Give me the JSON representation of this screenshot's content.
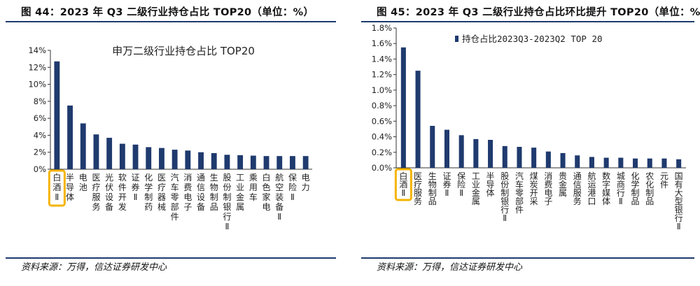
{
  "figure_left": {
    "title": "图 44：2023 年 Q3 二级行业持仓占比 TOP20（单位：%）",
    "source": "资料来源：万得，信达证券研发中心"
  },
  "figure_right": {
    "title": "图 45：2023 年 Q3 二级行业持仓占比环比提升 TOP20（单位：%）",
    "source": "资料来源：万得，信达证券研发中心"
  },
  "colors": {
    "bar": "#1f3a6e",
    "highlight": "#f5b400",
    "rule": "#1f3a6e"
  },
  "chart_data": [
    {
      "type": "bar",
      "title": "申万二级行业持仓占比 TOP20",
      "categories": [
        "白酒Ⅱ",
        "半导体",
        "电池",
        "医疗服务",
        "光伏设备",
        "软件开发",
        "证券Ⅱ",
        "化学制药",
        "医疗器械",
        "汽车零部件",
        "消费电子",
        "通信设备",
        "生物制品",
        "股份制银行Ⅱ",
        "工业金属",
        "乘用车",
        "白色家电",
        "航空装备Ⅱ",
        "保险Ⅱ",
        "电力"
      ],
      "values": [
        12.7,
        7.5,
        5.4,
        4.1,
        3.7,
        3.0,
        2.9,
        2.6,
        2.5,
        2.3,
        2.2,
        2.0,
        1.9,
        1.7,
        1.65,
        1.6,
        1.55,
        1.55,
        1.55,
        1.55
      ],
      "ylim": [
        0,
        14
      ],
      "yticks": [
        "0%",
        "2%",
        "4%",
        "6%",
        "8%",
        "10%",
        "12%",
        "14%"
      ],
      "highlight": "白酒Ⅱ",
      "grid": false
    },
    {
      "type": "bar",
      "categories": [
        "白酒Ⅱ",
        "医疗服务",
        "生物制品",
        "证券Ⅱ",
        "保险Ⅱ",
        "工业金属",
        "半导体",
        "股份制银行Ⅱ",
        "汽车零部件",
        "煤炭开采",
        "消费电子",
        "贵金属",
        "通信服务",
        "航运港口",
        "数字媒体",
        "城商行Ⅱ",
        "化学制品",
        "农化制品",
        "元件",
        "国有大型银行Ⅱ"
      ],
      "series": [
        {
          "name": "持仓占比2023Q3-2023Q2 TOP 20",
          "values": [
            1.55,
            1.25,
            0.54,
            0.49,
            0.42,
            0.37,
            0.36,
            0.28,
            0.27,
            0.26,
            0.21,
            0.19,
            0.16,
            0.14,
            0.13,
            0.13,
            0.12,
            0.12,
            0.12,
            0.11
          ]
        }
      ],
      "ylim": [
        0,
        1.8
      ],
      "yticks": [
        "0.0%",
        "0.2%",
        "0.4%",
        "0.6%",
        "0.8%",
        "1.0%",
        "1.2%",
        "1.4%",
        "1.6%",
        "1.8%"
      ],
      "legend": "top-left",
      "highlight": "白酒Ⅱ",
      "grid": false
    }
  ]
}
